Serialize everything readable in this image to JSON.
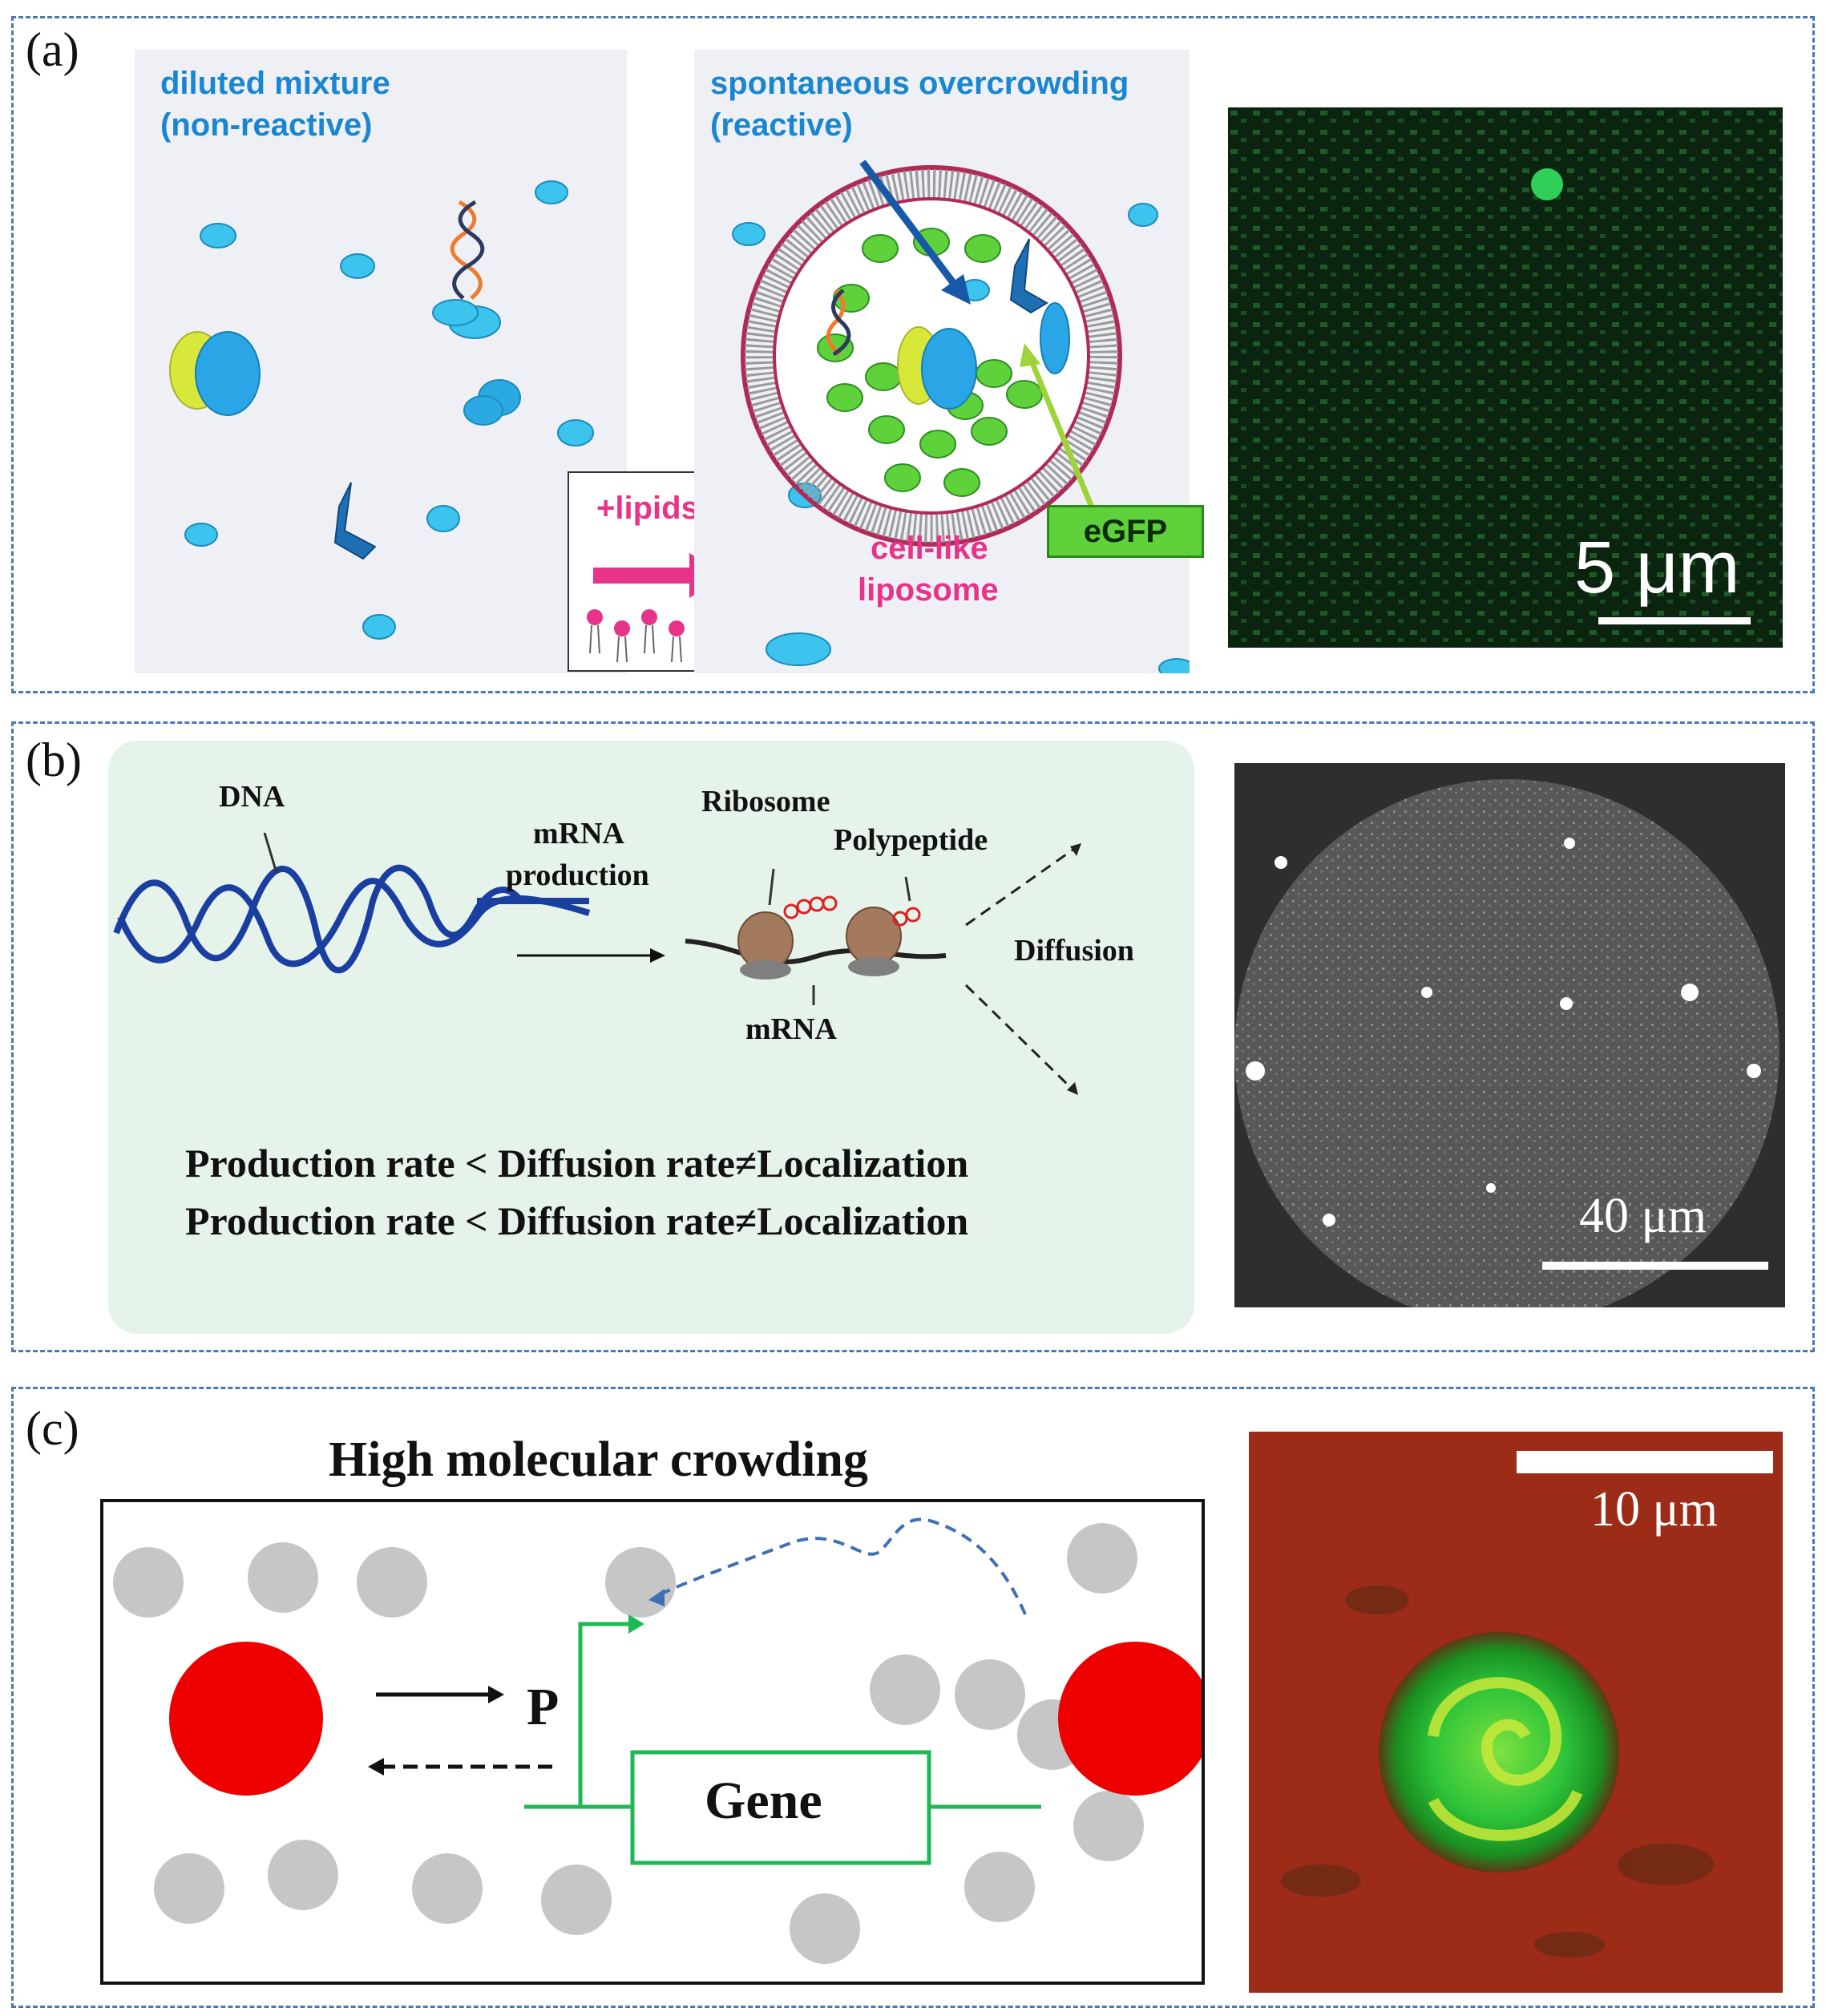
{
  "panel_a": {
    "label": "(a)",
    "left_title_line1": "diluted mixture",
    "left_title_line2": "(non-reactive)",
    "right_title_line1": "spontaneous overcrowding",
    "right_title_line2": "(reactive)",
    "lipids_label": "+lipids",
    "liposome_line1": "cell-like",
    "liposome_line2": "liposome",
    "egfp_label": "eGFP",
    "scalebar": "5 μm",
    "colors": {
      "blue_text": "#1a86d0",
      "pink": "#e8338a",
      "micro_bg": "#0a2410"
    }
  },
  "panel_b": {
    "label": "(b)",
    "dna": "DNA",
    "mrna_production_line1": "mRNA",
    "mrna_production_line2": "production",
    "ribosome": "Ribosome",
    "polypeptide": "Polypeptide",
    "diffusion": "Diffusion",
    "mrna": "mRNA",
    "equation_line1": "Production rate < Diffusion rate≠Localization",
    "equation_line2": "Production rate < Diffusion rate≠Localization",
    "scalebar": "40 μm",
    "colors": {
      "box_bg": "#e6f3ea",
      "dna_blue": "#1a3fa0",
      "ribosome": "#a47a5e"
    }
  },
  "panel_c": {
    "label": "(c)",
    "title": "High molecular crowding",
    "promoter": "P",
    "gene": "Gene",
    "scalebar": "10 μm",
    "colors": {
      "red": "#ee0000",
      "grey": "#c6c6c6",
      "green": "#1db954",
      "micro_bg": "#a52a1a"
    }
  }
}
